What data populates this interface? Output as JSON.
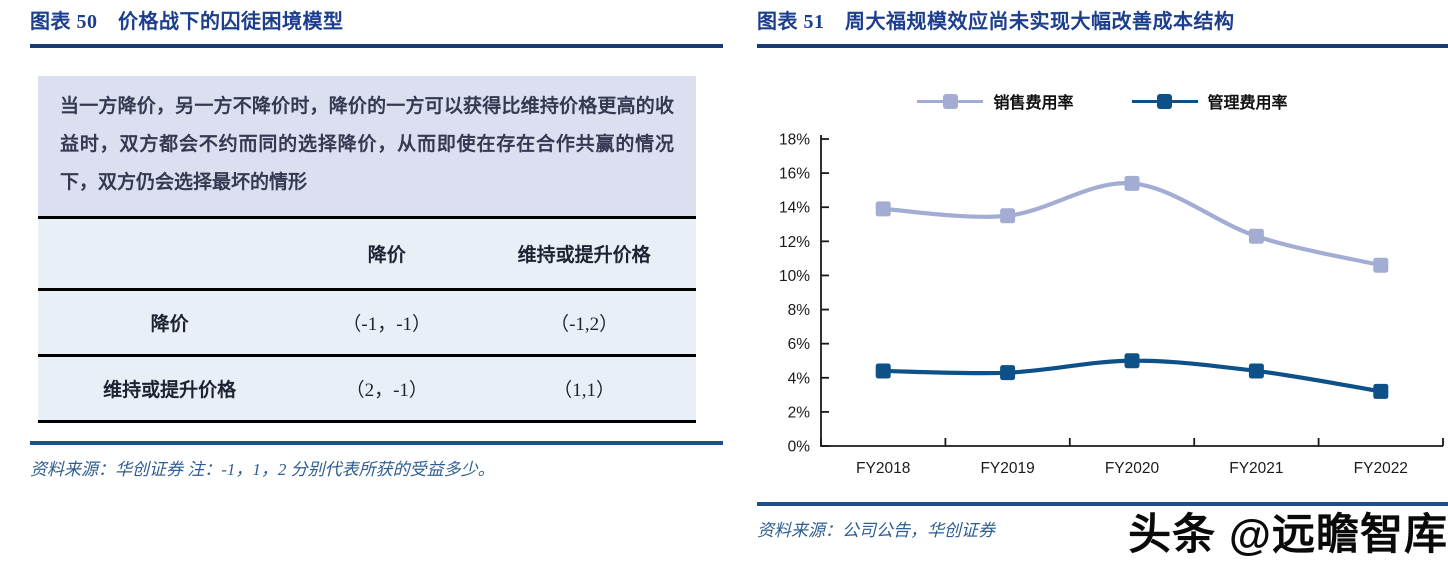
{
  "figure_left": {
    "title": "图表 50　价格战下的囚徒困境模型",
    "info_box_text": "当一方降价，另一方不降价时，降价的一方可以获得比维持价格更高的收益时，双方都会不约而同的选择降价，从而即使在存在合作共赢的情况下，双方仍会选择最坏的情形",
    "table": {
      "headers": [
        "",
        "降价",
        "维持或提升价格"
      ],
      "rows": [
        [
          "降价",
          "（-1，-1）",
          "（-1,2）"
        ],
        [
          "维持或提升价格",
          "（2，-1）",
          "（1,1）"
        ]
      ]
    },
    "source": "资料来源：华创证券  注：-1，1，2 分别代表所获的受益多少。"
  },
  "figure_right": {
    "title": "图表 51　周大福规模效应尚未实现大幅改善成本结构",
    "source": "资料来源：公司公告，华创证券"
  },
  "watermark": "头条 @远瞻智库",
  "colors": {
    "title_text": "#1c3e8c",
    "title_rule": "#193a74",
    "info_box_bg": "#dcdff0",
    "info_box_text": "#333a52",
    "table_bg": "#e9eff7",
    "table_text": "#1c2433",
    "source_rule": "#1f4e8d",
    "source_text": "#2e5e91",
    "axis_color": "#1a1a1a"
  },
  "chart_data": {
    "type": "line",
    "categories": [
      "FY2018",
      "FY2019",
      "FY2020",
      "FY2021",
      "FY2022"
    ],
    "series": [
      {
        "name": "销售费用率",
        "values": [
          13.9,
          13.5,
          15.4,
          12.3,
          10.6
        ],
        "color": "#a3acd3"
      },
      {
        "name": "管理费用率",
        "values": [
          4.4,
          4.3,
          5.0,
          4.4,
          3.2
        ],
        "color": "#0e5189"
      }
    ],
    "title": "",
    "xlabel": "",
    "ylabel": "",
    "ylim": [
      0,
      18
    ],
    "ytick_step": 2,
    "ytick_format": "percent",
    "legend_position": "top",
    "grid": false,
    "marker": "square",
    "smooth": true
  }
}
